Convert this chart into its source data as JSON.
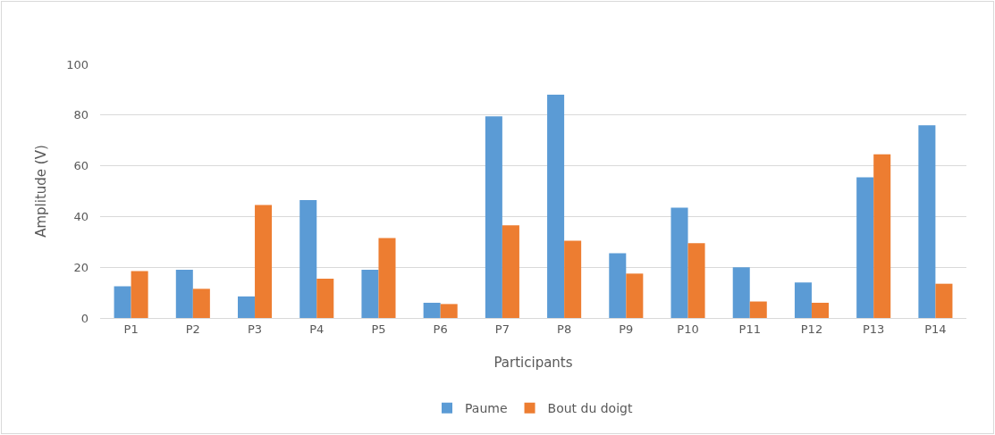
{
  "chart_data": {
    "type": "bar",
    "xlabel": "Participants",
    "ylabel": "Amplitude (V)",
    "categories": [
      "P1",
      "P2",
      "P3",
      "P4",
      "P5",
      "P6",
      "P7",
      "P8",
      "P9",
      "P10",
      "P11",
      "P12",
      "P13",
      "P14"
    ],
    "series": [
      {
        "name": "Paume",
        "color": "#5b9bd5",
        "values": [
          12.5,
          19,
          8.5,
          46.5,
          19,
          6,
          79.5,
          88,
          25.5,
          43.5,
          20,
          14,
          55.5,
          76
        ]
      },
      {
        "name": "Bout du doigt",
        "color": "#ed7d31",
        "values": [
          18.5,
          11.5,
          44.5,
          15.5,
          31.5,
          5.5,
          36.5,
          30.5,
          17.5,
          29.5,
          6.5,
          6,
          64.5,
          13.5
        ]
      }
    ],
    "ylim": [
      0,
      100
    ],
    "yticks": [
      0,
      20,
      40,
      60,
      80,
      100
    ],
    "grid": "y",
    "legend": "bottom"
  }
}
